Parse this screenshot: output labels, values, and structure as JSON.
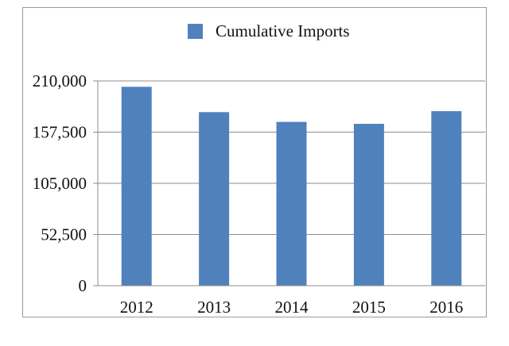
{
  "chart_data": {
    "type": "bar",
    "title": "",
    "xlabel": "",
    "ylabel": "",
    "categories": [
      "2012",
      "2013",
      "2014",
      "2015",
      "2016"
    ],
    "series": [
      {
        "name": "Cumulative Imports",
        "color": "#4f81bd",
        "values": [
          204000,
          178000,
          168000,
          166000,
          179000
        ]
      }
    ],
    "ylim": [
      0,
      210000
    ],
    "yticks": [
      0,
      52500,
      105000,
      157500,
      210000
    ],
    "ytick_labels": [
      "0",
      "52,500",
      "105,000",
      "157,500",
      "210,000"
    ],
    "grid": true,
    "legend": "top-center"
  }
}
